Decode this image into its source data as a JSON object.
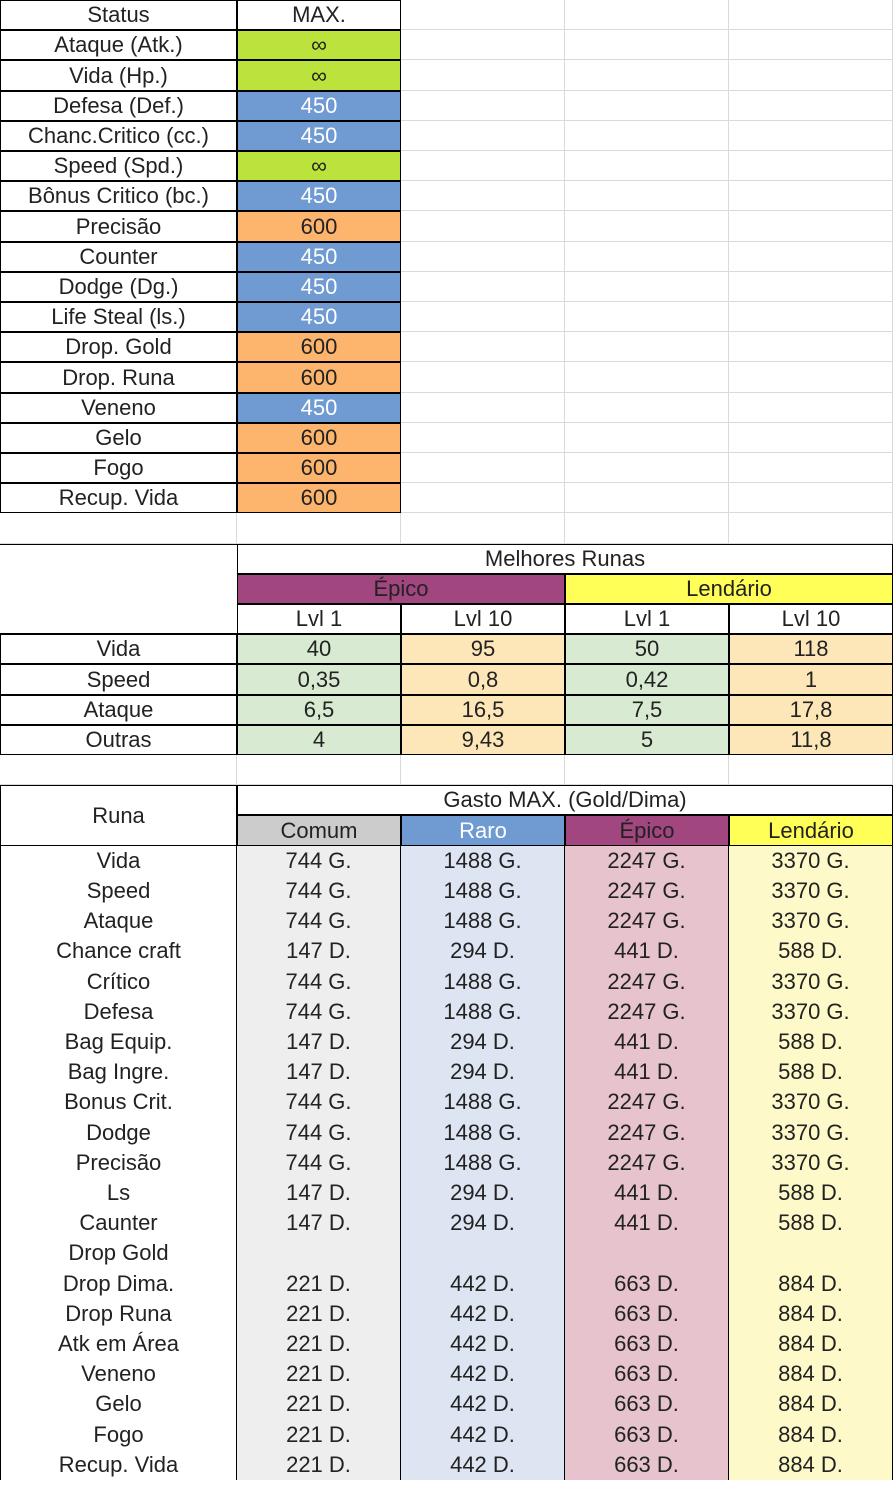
{
  "colors": {
    "green": "#bce33c",
    "blue": "#6f9bd2",
    "orange": "#fdb56e",
    "purple": "#a1467e",
    "yellow": "#ffff57",
    "gray_header": "#cccccc",
    "light_green": "#d9ead3",
    "light_orange": "#fde7b8",
    "cell_gray": "#eeeeee",
    "cell_blue": "#dce5f1",
    "cell_pink": "#e6c3cd",
    "cell_yellow": "#fdf9c9"
  },
  "status_table": {
    "header_status": "Status",
    "header_max": "MAX.",
    "rows": [
      {
        "label": "Ataque (Atk.)",
        "value": "∞",
        "color": "green"
      },
      {
        "label": "Vida (Hp.)",
        "value": "∞",
        "color": "green"
      },
      {
        "label": "Defesa (Def.)",
        "value": "450",
        "color": "blue"
      },
      {
        "label": "Chanc.Critico (cc.)",
        "value": "450",
        "color": "blue"
      },
      {
        "label": "Speed (Spd.)",
        "value": "∞",
        "color": "green"
      },
      {
        "label": "Bônus Critico (bc.)",
        "value": "450",
        "color": "blue"
      },
      {
        "label": "Precisão",
        "value": "600",
        "color": "orange"
      },
      {
        "label": "Counter",
        "value": "450",
        "color": "blue"
      },
      {
        "label": "Dodge (Dg.)",
        "value": "450",
        "color": "blue"
      },
      {
        "label": "Life Steal (ls.)",
        "value": "450",
        "color": "blue"
      },
      {
        "label": "Drop. Gold",
        "value": "600",
        "color": "orange"
      },
      {
        "label": "Drop. Runa",
        "value": "600",
        "color": "orange"
      },
      {
        "label": "Veneno",
        "value": "450",
        "color": "blue"
      },
      {
        "label": "Gelo",
        "value": "600",
        "color": "orange"
      },
      {
        "label": "Fogo",
        "value": "600",
        "color": "orange"
      },
      {
        "label": "Recup. Vida",
        "value": "600",
        "color": "orange"
      }
    ]
  },
  "runas_table": {
    "title": "Melhores Runas",
    "group_epico": "Épico",
    "group_lendario": "Lendário",
    "levels": [
      "Lvl 1",
      "Lvl 10",
      "Lvl 1",
      "Lvl 10"
    ],
    "rows": [
      {
        "label": "Vida",
        "values": [
          "40",
          "95",
          "50",
          "118"
        ]
      },
      {
        "label": "Speed",
        "values": [
          "0,35",
          "0,8",
          "0,42",
          "1"
        ]
      },
      {
        "label": "Ataque",
        "values": [
          "6,5",
          "16,5",
          "7,5",
          "17,8"
        ]
      },
      {
        "label": "Outras",
        "values": [
          "4",
          "9,43",
          "5",
          "11,8"
        ]
      }
    ]
  },
  "gasto_table": {
    "runa_header": "Runa",
    "title": "Gasto MAX. (Gold/Dima)",
    "tiers": [
      "Comum",
      "Raro",
      "Épico",
      "Lendário"
    ],
    "rows": [
      {
        "label": "Vida",
        "values": [
          "744 G.",
          "1488 G.",
          "2247 G.",
          "3370 G."
        ]
      },
      {
        "label": "Speed",
        "values": [
          "744 G.",
          "1488 G.",
          "2247 G.",
          "3370 G."
        ]
      },
      {
        "label": "Ataque",
        "values": [
          "744 G.",
          "1488 G.",
          "2247 G.",
          "3370 G."
        ]
      },
      {
        "label": "Chance craft",
        "values": [
          "147 D.",
          "294 D.",
          "441 D.",
          "588 D."
        ]
      },
      {
        "label": "Crítico",
        "values": [
          "744 G.",
          "1488 G.",
          "2247 G.",
          "3370 G."
        ]
      },
      {
        "label": "Defesa",
        "values": [
          "744 G.",
          "1488 G.",
          "2247 G.",
          "3370 G."
        ]
      },
      {
        "label": "Bag Equip.",
        "values": [
          "147 D.",
          "294 D.",
          "441 D.",
          "588 D."
        ]
      },
      {
        "label": "Bag Ingre.",
        "values": [
          "147 D.",
          "294 D.",
          "441 D.",
          "588 D."
        ]
      },
      {
        "label": "Bonus Crit.",
        "values": [
          "744 G.",
          "1488 G.",
          "2247 G.",
          "3370 G."
        ]
      },
      {
        "label": "Dodge",
        "values": [
          "744 G.",
          "1488 G.",
          "2247 G.",
          "3370 G."
        ]
      },
      {
        "label": "Precisão",
        "values": [
          "744 G.",
          "1488 G.",
          "2247 G.",
          "3370 G."
        ]
      },
      {
        "label": "Ls",
        "values": [
          "147 D.",
          "294 D.",
          "441 D.",
          "588 D."
        ]
      },
      {
        "label": "Caunter",
        "values": [
          "147 D.",
          "294 D.",
          "441 D.",
          "588 D."
        ]
      },
      {
        "label": "Drop Gold",
        "values": [
          "",
          "",
          "",
          ""
        ]
      },
      {
        "label": "Drop Dima.",
        "values": [
          "221 D.",
          "442 D.",
          "663 D.",
          "884 D."
        ]
      },
      {
        "label": "Drop Runa",
        "values": [
          "221 D.",
          "442 D.",
          "663 D.",
          "884 D."
        ]
      },
      {
        "label": "Atk em Área",
        "values": [
          "221 D.",
          "442 D.",
          "663 D.",
          "884 D."
        ]
      },
      {
        "label": "Veneno",
        "values": [
          "221 D.",
          "442 D.",
          "663 D.",
          "884 D."
        ]
      },
      {
        "label": "Gelo",
        "values": [
          "221 D.",
          "442 D.",
          "663 D.",
          "884 D."
        ]
      },
      {
        "label": "Fogo",
        "values": [
          "221 D.",
          "442 D.",
          "663 D.",
          "884 D."
        ]
      },
      {
        "label": "Recup. Vida",
        "values": [
          "221 D.",
          "442 D.",
          "663 D.",
          "884 D."
        ]
      }
    ]
  }
}
